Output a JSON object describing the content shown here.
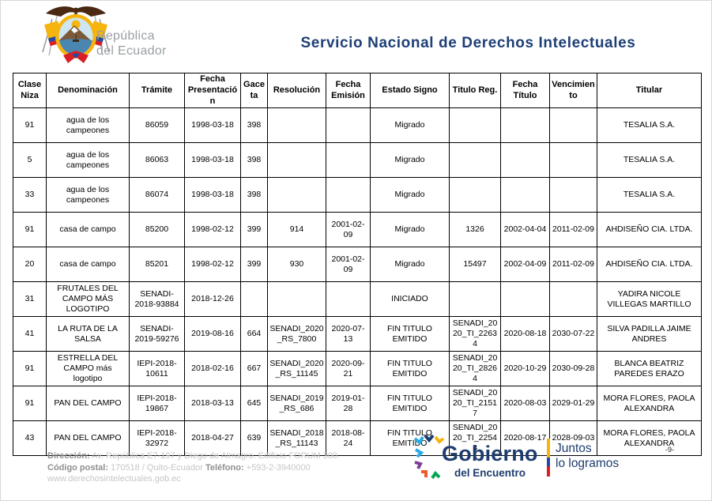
{
  "header": {
    "republic_line1": "República",
    "republic_line2": "del Ecuador",
    "title": "Servicio Nacional de Derechos Intelectuales",
    "title_color": "#1e3f77"
  },
  "table": {
    "columns": [
      "Clase Niza",
      "Denominación",
      "Trámite",
      "Fecha Presentación",
      "Gaceta",
      "Resolución",
      "Fecha Emisión",
      "Estado Signo",
      "Titulo Reg.",
      "Fecha Título",
      "Vencimiento",
      "Titular"
    ],
    "rows": [
      [
        "91",
        "agua de los campeones",
        "86059",
        "1998-03-18",
        "398",
        "",
        "",
        "Migrado",
        "",
        "",
        "",
        "TESALIA S.A."
      ],
      [
        "5",
        "agua de los campeones",
        "86063",
        "1998-03-18",
        "398",
        "",
        "",
        "Migrado",
        "",
        "",
        "",
        "TESALIA S.A."
      ],
      [
        "33",
        "agua de los campeones",
        "86074",
        "1998-03-18",
        "398",
        "",
        "",
        "Migrado",
        "",
        "",
        "",
        "TESALIA S.A."
      ],
      [
        "91",
        "casa de campo",
        "85200",
        "1998-02-12",
        "399",
        "914",
        "2001-02-09",
        "Migrado",
        "1326",
        "2002-04-04",
        "2011-02-09",
        "AHDISEÑO CIA. LTDA."
      ],
      [
        "20",
        "casa de campo",
        "85201",
        "1998-02-12",
        "399",
        "930",
        "2001-02-09",
        "Migrado",
        "15497",
        "2002-04-09",
        "2011-02-09",
        "AHDISEÑO CIA. LTDA."
      ],
      [
        "31",
        "FRUTALES DEL CAMPO MÁS LOGOTIPO",
        "SENADI-2018-93884",
        "2018-12-26",
        "",
        "",
        "",
        "INICIADO",
        "",
        "",
        "",
        "YADIRA NICOLE VILLEGAS MARTILLO"
      ],
      [
        "41",
        "LA RUTA DE LA SALSA",
        "SENADI-2019-59276",
        "2019-08-16",
        "664",
        "SENADI_2020_RS_7800",
        "2020-07-13",
        "FIN TITULO EMITIDO",
        "SENADI_2020_TI_22634",
        "2020-08-18",
        "2030-07-22",
        "SILVA PADILLA JAIME ANDRES"
      ],
      [
        "91",
        "ESTRELLA DEL CAMPO más logotipo",
        "IEPI-2018-10611",
        "2018-02-16",
        "667",
        "SENADI_2020_RS_11145",
        "2020-09-21",
        "FIN TITULO EMITIDO",
        "SENADI_2020_TI_28264",
        "2020-10-29",
        "2030-09-28",
        "BLANCA BEATRIZ PAREDES ERAZO"
      ],
      [
        "91",
        "PAN DEL CAMPO",
        "IEPI-2018-19867",
        "2018-03-13",
        "645",
        "SENADI_2019_RS_686",
        "2019-01-28",
        "FIN TITULO EMITIDO",
        "SENADI_2020_TI_21517",
        "2020-08-03",
        "2029-01-29",
        "MORA FLORES, PAOLA ALEXANDRA"
      ],
      [
        "43",
        "PAN DEL CAMPO",
        "IEPI-2018-32972",
        "2018-04-27",
        "639",
        "SENADI_2018_RS_11143",
        "2018-08-24",
        "FIN TITULO EMITIDO",
        "SENADI_2020_TI_22543",
        "2020-08-17",
        "2028-09-03",
        "MORA FLORES, PAOLA ALEXANDRA"
      ]
    ]
  },
  "footer": {
    "address": {
      "dir_label": "Dirección:",
      "dir_value": "Av. República E7-197 y Diego de Almagro. Edificio FORUM 300.",
      "cp_label": "Código postal:",
      "cp_value": "170518 / Quito-Ecuador",
      "tel_label": "Teléfono:",
      "tel_value": "+593-2-3940000",
      "website": "www.derechosintelectuales.gob.ec"
    },
    "gobierno": {
      "brand_line1": "Gobierno",
      "brand_line2": "del Encuentro",
      "slogan_line1": "Juntos",
      "slogan_line2": "lo logramos",
      "brand_color": "#1d3c6e",
      "chevron_colors": [
        "#29abe2",
        "#1d3c6e",
        "#f6b40e",
        "#7b3f98",
        "#f15a29",
        "#00a651",
        "#d81f26"
      ],
      "flag_colors": [
        "#f6b40e",
        "#1f4aa8",
        "#d81f26"
      ]
    },
    "page_number": "-9-"
  }
}
